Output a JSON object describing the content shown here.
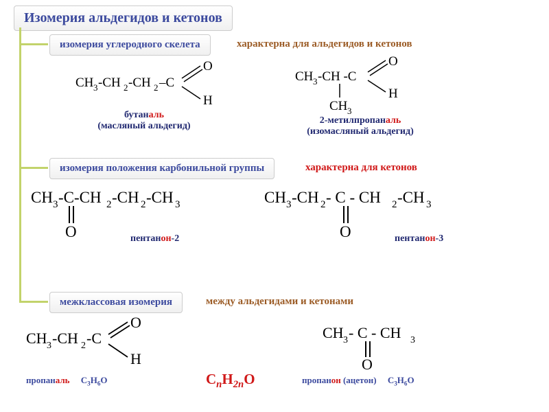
{
  "title": "Изомерия альдегидов и кетонов",
  "tree": {
    "line_color": "#c2d36b",
    "line_width": 3
  },
  "section1": {
    "type_label": "изомерия углеродного скелета",
    "desc": "характерна для альдегидов и кетонов",
    "desc_color": "#9b5b25",
    "ex_left": {
      "formula_prefix": "CH",
      "line1": "бутан",
      "line1_suffix": "аль",
      "line2": "(масляный альдегид)",
      "color": "#202870",
      "suffix_color": "#d01818"
    },
    "ex_right": {
      "line1_prefix": "2-метилпропан",
      "line1_suffix": "аль",
      "line2": "(изомасляный альдегид)",
      "color": "#202870",
      "suffix_color": "#d01818"
    }
  },
  "section2": {
    "type_label": "изомерия положения карбонильной группы",
    "desc": "характерна для кетонов",
    "desc_color": "#d01818",
    "ex_left": {
      "name_prefix": "пентан",
      "name_mid": "он",
      "name_suffix": "-2",
      "prefix_color": "#202870",
      "mid_color": "#d01818",
      "suffix_color": "#202870"
    },
    "ex_right": {
      "name_prefix": "пентан",
      "name_mid": "он",
      "name_suffix": "-3",
      "prefix_color": "#202870",
      "mid_color": "#d01818",
      "suffix_color": "#202870"
    }
  },
  "section3": {
    "type_label": "межклассовая изомерия",
    "desc": "между альдегидами и кетонами",
    "desc_color": "#9b5b25",
    "general_formula_html": "C<span class='sub n'>n</span>H<span class='sub n'>2n</span>O",
    "ex_left": {
      "name_prefix": "пропан",
      "name_suffix": "аль",
      "formula_html": "C<span class='sub'>3</span>H<span class='sub'>6</span>O",
      "prefix_color": "#3c4a9e",
      "suffix_color": "#d01818",
      "formula_color": "#3c4a9e"
    },
    "ex_right": {
      "name_prefix": "пропан",
      "name_mid": "он",
      "name_paren": " (ацетон)",
      "formula_html": "C<span class='sub'>3</span>H<span class='sub'>6</span>O",
      "prefix_color": "#3c4a9e",
      "mid_color": "#d01818",
      "formula_color": "#3c4a9e"
    }
  }
}
